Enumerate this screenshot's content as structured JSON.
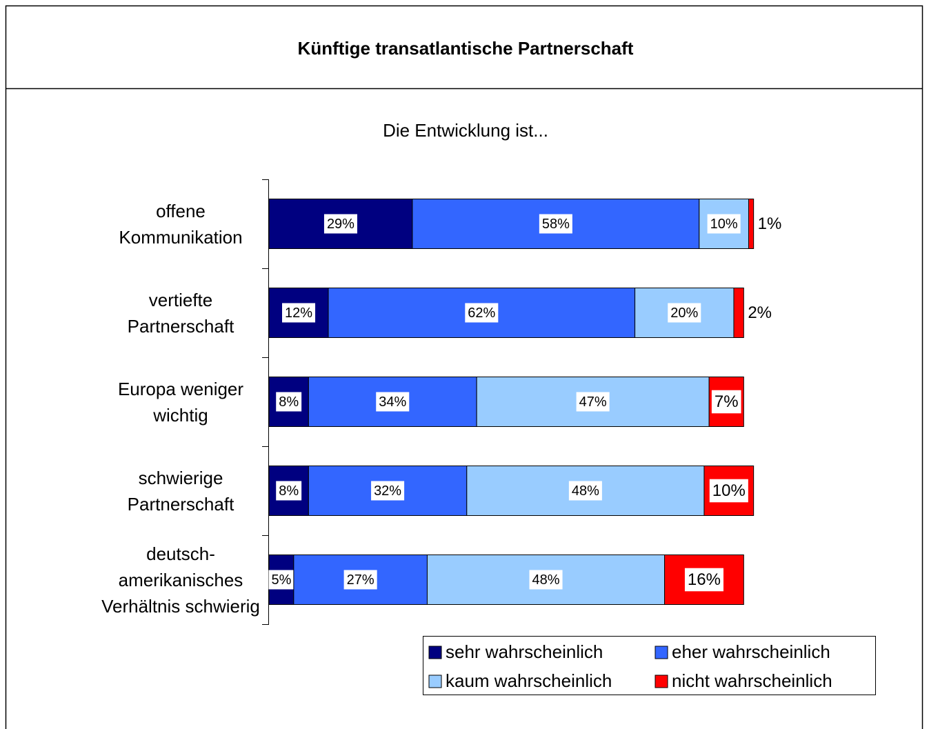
{
  "chart_data": {
    "type": "stacked-bar-horizontal",
    "title": "Künftige transatlantische Partnerschaft",
    "subtitle": "Die Entwicklung ist...",
    "categories": [
      "offene\nKommunikation",
      "vertiefte\nPartnerschaft",
      "Europa weniger\nwichtig",
      "schwierige\nPartnerschaft",
      "deutsch-\namerikanisches\nVerhältnis schwierig"
    ],
    "series": [
      {
        "name": "sehr wahrscheinlich",
        "color": "#000080",
        "values": [
          29,
          12,
          8,
          8,
          5
        ],
        "value_labels": [
          "29%",
          "12%",
          "8%",
          "8%",
          "5%"
        ]
      },
      {
        "name": "eher wahrscheinlich",
        "color": "#3366ff",
        "values": [
          58,
          62,
          34,
          32,
          27
        ],
        "value_labels": [
          "58%",
          "62%",
          "34%",
          "32%",
          "27%"
        ]
      },
      {
        "name": "kaum wahrscheinlich",
        "color": "#99ccff",
        "values": [
          10,
          20,
          47,
          48,
          48
        ],
        "value_labels": [
          "10%",
          "20%",
          "47%",
          "48%",
          "48%"
        ]
      },
      {
        "name": "nicht wahrscheinlich",
        "color": "#ff0000",
        "values": [
          1,
          2,
          7,
          10,
          16
        ],
        "value_labels": [
          "1%",
          "2%",
          "7%",
          "10%",
          "16%"
        ]
      }
    ]
  }
}
